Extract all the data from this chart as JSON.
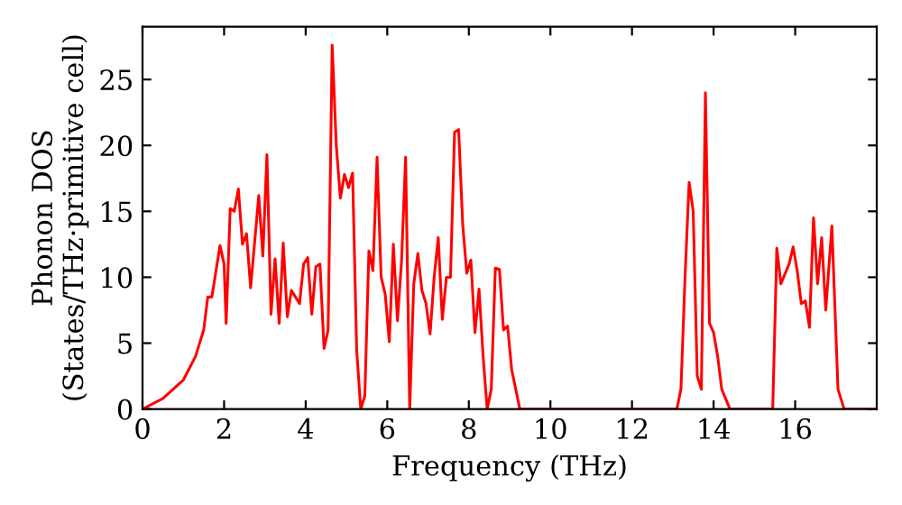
{
  "chart_data": {
    "type": "line",
    "xlabel": "Frequency (THz)",
    "ylabel": "Phonon DOS\n(States/THz·primitive cell)",
    "xlim": [
      0,
      18
    ],
    "ylim": [
      0,
      29
    ],
    "xticks": [
      0,
      2,
      4,
      6,
      8,
      10,
      12,
      14,
      16
    ],
    "yticks": [
      0,
      5,
      10,
      15,
      20,
      25
    ],
    "grid": false,
    "legend": false,
    "marker": "none",
    "line_style": "solid",
    "series": [
      {
        "color": "#ff0000",
        "x": [
          0,
          0.5,
          1,
          1.3,
          1.5,
          1.6,
          1.7,
          1.9,
          2.0,
          2.05,
          2.15,
          2.25,
          2.35,
          2.45,
          2.55,
          2.65,
          2.85,
          2.95,
          3.05,
          3.15,
          3.25,
          3.35,
          3.45,
          3.55,
          3.65,
          3.85,
          3.95,
          4.05,
          4.15,
          4.25,
          4.35,
          4.45,
          4.55,
          4.65,
          4.75,
          4.85,
          4.95,
          5.05,
          5.15,
          5.25,
          5.35,
          5.45,
          5.55,
          5.65,
          5.75,
          5.85,
          5.95,
          6.05,
          6.15,
          6.25,
          6.35,
          6.45,
          6.55,
          6.65,
          6.75,
          6.85,
          6.95,
          7.05,
          7.15,
          7.25,
          7.35,
          7.45,
          7.55,
          7.65,
          7.75,
          7.85,
          7.95,
          8.05,
          8.15,
          8.25,
          8.35,
          8.45,
          8.55,
          8.65,
          8.75,
          8.85,
          8.95,
          9.05,
          9.25,
          13.1,
          13.2,
          13.3,
          13.4,
          13.5,
          13.6,
          13.7,
          13.8,
          13.9,
          14.0,
          14.1,
          14.2,
          14.4,
          15.45,
          15.55,
          15.65,
          15.85,
          15.95,
          16.05,
          16.15,
          16.25,
          16.35,
          16.45,
          16.55,
          16.65,
          16.75,
          16.9,
          17.05,
          17.2,
          18
        ],
        "values": [
          0,
          0.8,
          2.2,
          4,
          6,
          8.5,
          8.5,
          12.4,
          11,
          6.5,
          15.2,
          15,
          16.7,
          12.5,
          13.3,
          9.2,
          16.2,
          11.6,
          19.3,
          7.2,
          11.4,
          6.5,
          12.6,
          7,
          9,
          8,
          11,
          11.5,
          7.2,
          10.8,
          11,
          4.6,
          6,
          27.6,
          20,
          16,
          17.8,
          16.8,
          17.9,
          4.5,
          0,
          1,
          12,
          10.5,
          19.1,
          10,
          8.7,
          5.1,
          12.5,
          6.7,
          11.2,
          19.1,
          0,
          9.5,
          11.8,
          9,
          8,
          5.7,
          10,
          13,
          6.8,
          10,
          10,
          21,
          21.2,
          14,
          10.3,
          11.3,
          5.8,
          9.1,
          4,
          0,
          1.5,
          10.7,
          10.6,
          6,
          6.3,
          3,
          0,
          0,
          1.5,
          10,
          17.2,
          15,
          2.5,
          1.5,
          24,
          6.5,
          5.8,
          4,
          1.5,
          0,
          0,
          12.2,
          9.5,
          11,
          12.3,
          10.5,
          8,
          8.2,
          6.2,
          14.5,
          9.5,
          13,
          7.5,
          13.9,
          1.5,
          0,
          0
        ]
      }
    ]
  }
}
